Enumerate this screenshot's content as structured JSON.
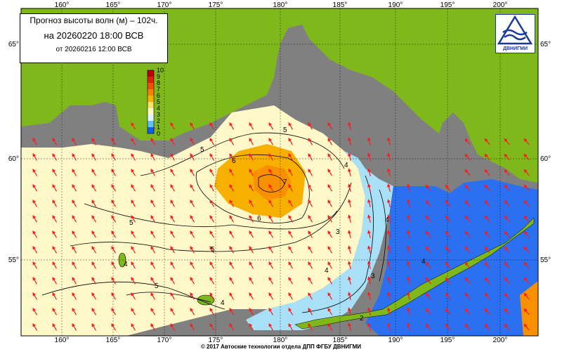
{
  "title": {
    "line1": "Прогноз высоты волн (м) – 102ч.",
    "line2": "на 20260220 18:00 ВСВ",
    "line3": "от 20260216 12:00 ВСВ"
  },
  "logo": {
    "text": "ДВНИГМИ"
  },
  "copyright": "© 2017 Автоские технологии отдела ДПП ФГБУ ДВНИГМИ",
  "colorbar": {
    "labels": [
      "10",
      "9",
      "8",
      "7",
      "6",
      "5",
      "4",
      "3",
      "2",
      "1",
      "0"
    ],
    "colors": [
      "#c00000",
      "#e02000",
      "#f05000",
      "#f88000",
      "#f8b000",
      "#f8e070",
      "#fff8c0",
      "#e0f4ff",
      "#60c0f8",
      "#1060f0",
      "#0000c0"
    ]
  },
  "axes": {
    "lon_labels": [
      "160°",
      "165°",
      "170°",
      "175°",
      "180°",
      "185°",
      "190°",
      "195°",
      "200°"
    ],
    "lat_labels": [
      "65°",
      "60°",
      "55°"
    ]
  },
  "contour_labels": [
    "5",
    "6",
    "7",
    "5",
    "6",
    "5",
    "5",
    "4",
    "4",
    "3",
    "3",
    "4",
    "4",
    "4",
    "2",
    "5",
    "4"
  ],
  "colors": {
    "land": "#7fb81a",
    "ocean_mask": "#808080",
    "arrow": "#ff1a1a",
    "grid": "#000000"
  }
}
